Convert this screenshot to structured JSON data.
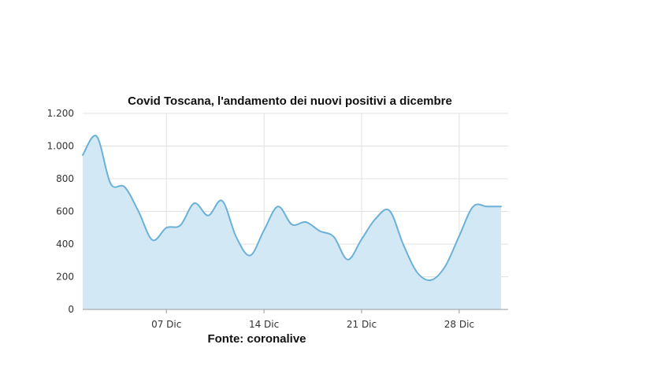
{
  "chart_data": {
    "type": "area",
    "title": "Covid Toscana, l'andamento dei nuovi positivi a dicembre",
    "source": "Fonte: coronalive",
    "xlabel": "",
    "ylabel": "",
    "x": [
      1,
      2,
      3,
      4,
      5,
      6,
      7,
      8,
      9,
      10,
      11,
      12,
      13,
      14,
      15,
      16,
      17,
      18,
      19,
      20,
      21,
      22,
      23,
      24,
      25,
      26,
      27,
      28,
      29,
      30,
      31
    ],
    "xlim": [
      1,
      31
    ],
    "x_ticks": [
      {
        "x": 7,
        "label": "07 Dic"
      },
      {
        "x": 14,
        "label": "14 Dic"
      },
      {
        "x": 21,
        "label": "21 Dic"
      },
      {
        "x": 28,
        "label": "28 Dic"
      }
    ],
    "ylim": [
      0,
      1200
    ],
    "y_ticks": [
      {
        "value": 0,
        "label": "0"
      },
      {
        "value": 200,
        "label": "200"
      },
      {
        "value": 400,
        "label": "400"
      },
      {
        "value": 600,
        "label": "600"
      },
      {
        "value": 800,
        "label": "800"
      },
      {
        "value": 1000,
        "label": "1.000"
      },
      {
        "value": 1200,
        "label": "1.200"
      }
    ],
    "grid": true,
    "series": [
      {
        "values": [
          945,
          1060,
          770,
          750,
          600,
          425,
          500,
          515,
          650,
          575,
          665,
          445,
          330,
          485,
          630,
          520,
          535,
          480,
          445,
          305,
          430,
          555,
          605,
          395,
          225,
          180,
          265,
          450,
          630,
          630,
          630
        ]
      }
    ],
    "colors": {
      "line": "#6bb1d6",
      "fill": "#d3e8f5",
      "grid": "#e0e0e0",
      "axis": "#999999"
    }
  }
}
